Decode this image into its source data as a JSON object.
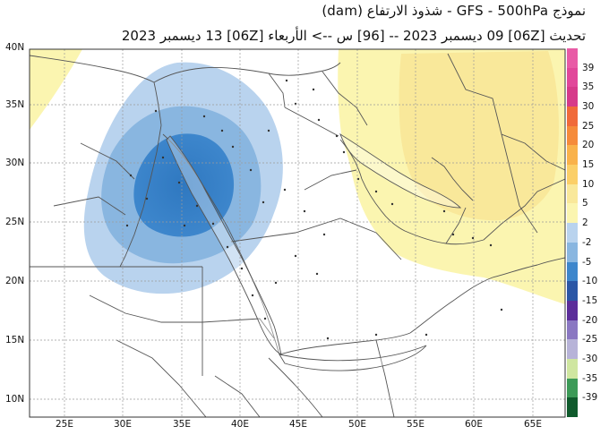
{
  "header": {
    "title_line1": "نموذج GFS  -  500hPa  -  شذوذ الارتفاع (dam)",
    "title_line2": "تحديث [06Z] 09 ديسمبر 2023 -- [96] س --> الأربعاء [06Z] 13 ديسمبر 2023"
  },
  "map": {
    "lat_labels": [
      "40N",
      "35N",
      "30N",
      "25N",
      "20N",
      "15N",
      "10N"
    ],
    "lon_labels": [
      "25E",
      "30E",
      "35E",
      "40E",
      "45E",
      "50E",
      "55E",
      "60E",
      "65E"
    ],
    "colors": {
      "land": "#ffffff",
      "border": "#555555",
      "anomaly_pos_2": "#fbf5b0",
      "anomaly_pos_5": "#f9e89a",
      "anomaly_neg_2": "#b9d3ee",
      "anomaly_neg_5": "#89b6e0",
      "anomaly_neg_10": "#3d86cc"
    }
  },
  "legend": {
    "entries": [
      {
        "label": "39",
        "color": "#e85ba6"
      },
      {
        "label": "35",
        "color": "#e1479a"
      },
      {
        "label": "30",
        "color": "#d63a8a"
      },
      {
        "label": "25",
        "color": "#f06a3a"
      },
      {
        "label": "20",
        "color": "#f58b3b"
      },
      {
        "label": "15",
        "color": "#f9b24b"
      },
      {
        "label": "10",
        "color": "#fbcf68"
      },
      {
        "label": "5",
        "color": "#f9e89a"
      },
      {
        "label": "2",
        "color": "#fbf5b0"
      },
      {
        "label": "-2",
        "color": "#b9d3ee"
      },
      {
        "label": "-5",
        "color": "#89b6e0"
      },
      {
        "label": "-10",
        "color": "#3d86cc"
      },
      {
        "label": "-15",
        "color": "#2a56a6"
      },
      {
        "label": "-20",
        "color": "#5b2d9a"
      },
      {
        "label": "-25",
        "color": "#8a77c2"
      },
      {
        "label": "-30",
        "color": "#b7b3d8"
      },
      {
        "label": "-35",
        "color": "#cfe6a0"
      },
      {
        "label": "-39",
        "color": "#3c9a57"
      }
    ],
    "bottom_color": "#0f5a2c"
  }
}
